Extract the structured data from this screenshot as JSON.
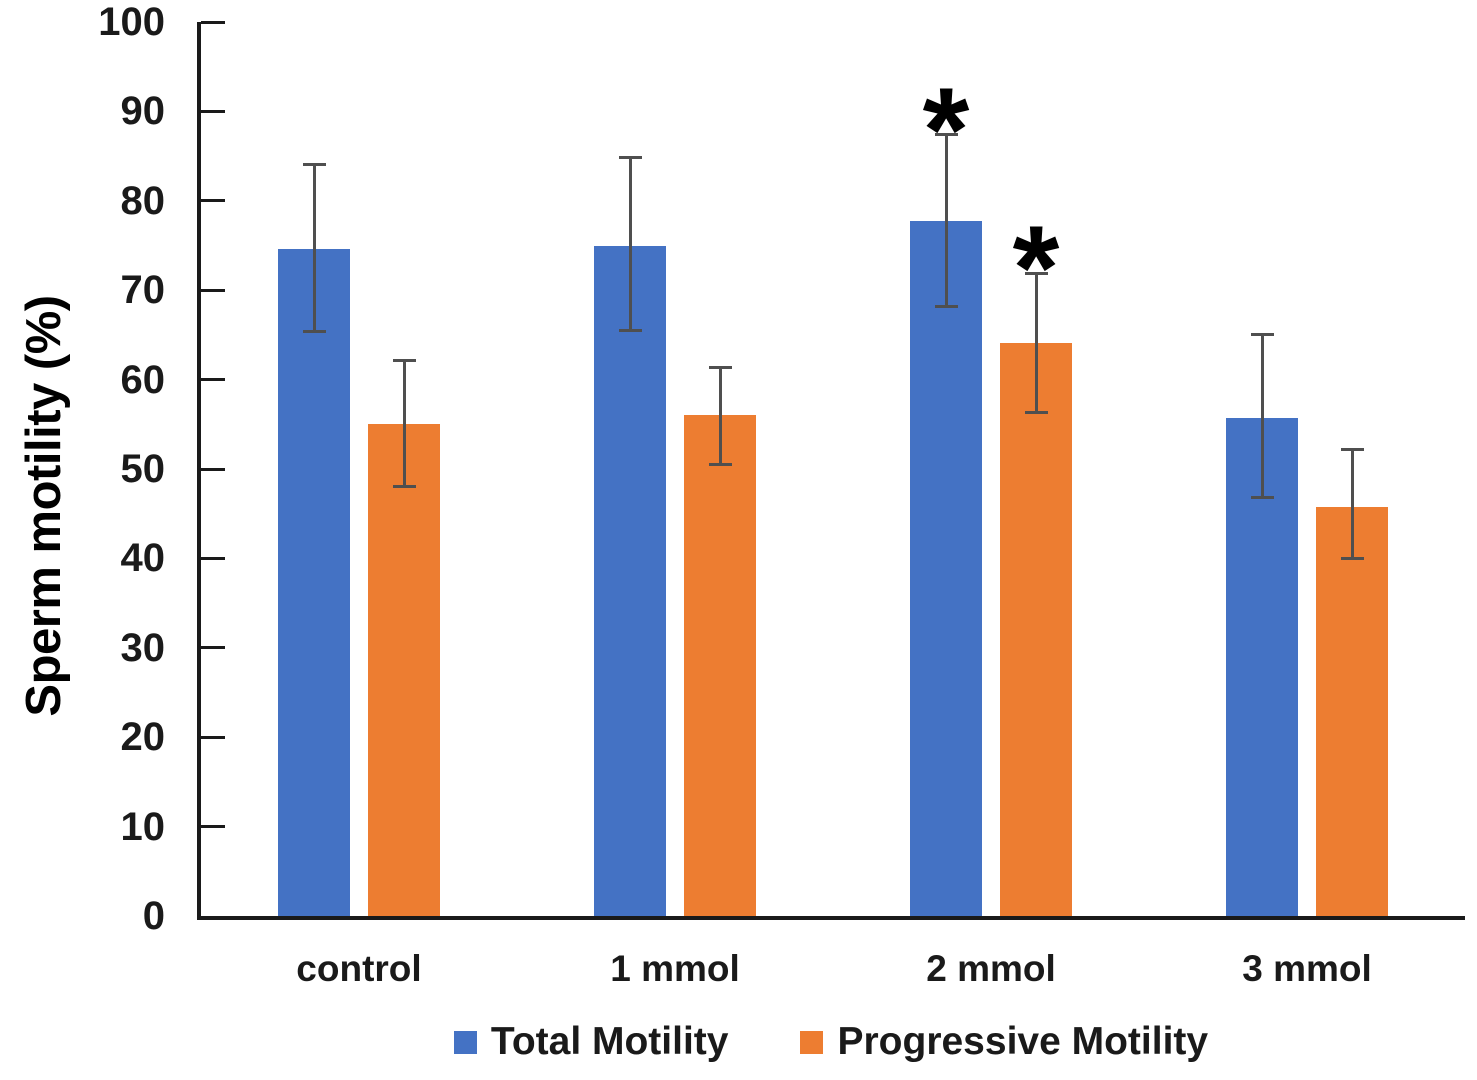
{
  "figure": {
    "background": "#ffffff"
  },
  "chart_data": {
    "type": "bar",
    "title": "",
    "xlabel": "",
    "ylabel": "Sperm motility (%)",
    "ylim": [
      0,
      100
    ],
    "yticks": [
      0,
      10,
      20,
      30,
      40,
      50,
      60,
      70,
      80,
      90,
      100
    ],
    "grid": false,
    "legend_position": "bottom",
    "categories": [
      "control",
      "1 mmol",
      "2 mmol",
      "3 mmol"
    ],
    "series": [
      {
        "name": "Total Motility",
        "color": "#4472C4",
        "values": [
          74.6,
          75.0,
          77.7,
          55.7
        ],
        "error_high": [
          84.1,
          84.8,
          87.4,
          65.1
        ],
        "error_low": [
          65.4,
          65.5,
          68.2,
          46.8
        ],
        "significance": [
          "",
          "",
          "*",
          ""
        ]
      },
      {
        "name": "Progressive Motility",
        "color": "#ED7D31",
        "values": [
          55.0,
          56.0,
          64.1,
          45.8
        ],
        "error_high": [
          62.1,
          61.3,
          71.9,
          52.2
        ],
        "error_low": [
          48.1,
          50.5,
          56.3,
          40.0
        ],
        "significance": [
          "",
          "",
          "*",
          ""
        ]
      }
    ],
    "colors": {
      "axis": "#1a1a1a",
      "error_bar": "#4f4f4f",
      "significance": "#000000",
      "text": "#1a1a1a"
    }
  }
}
